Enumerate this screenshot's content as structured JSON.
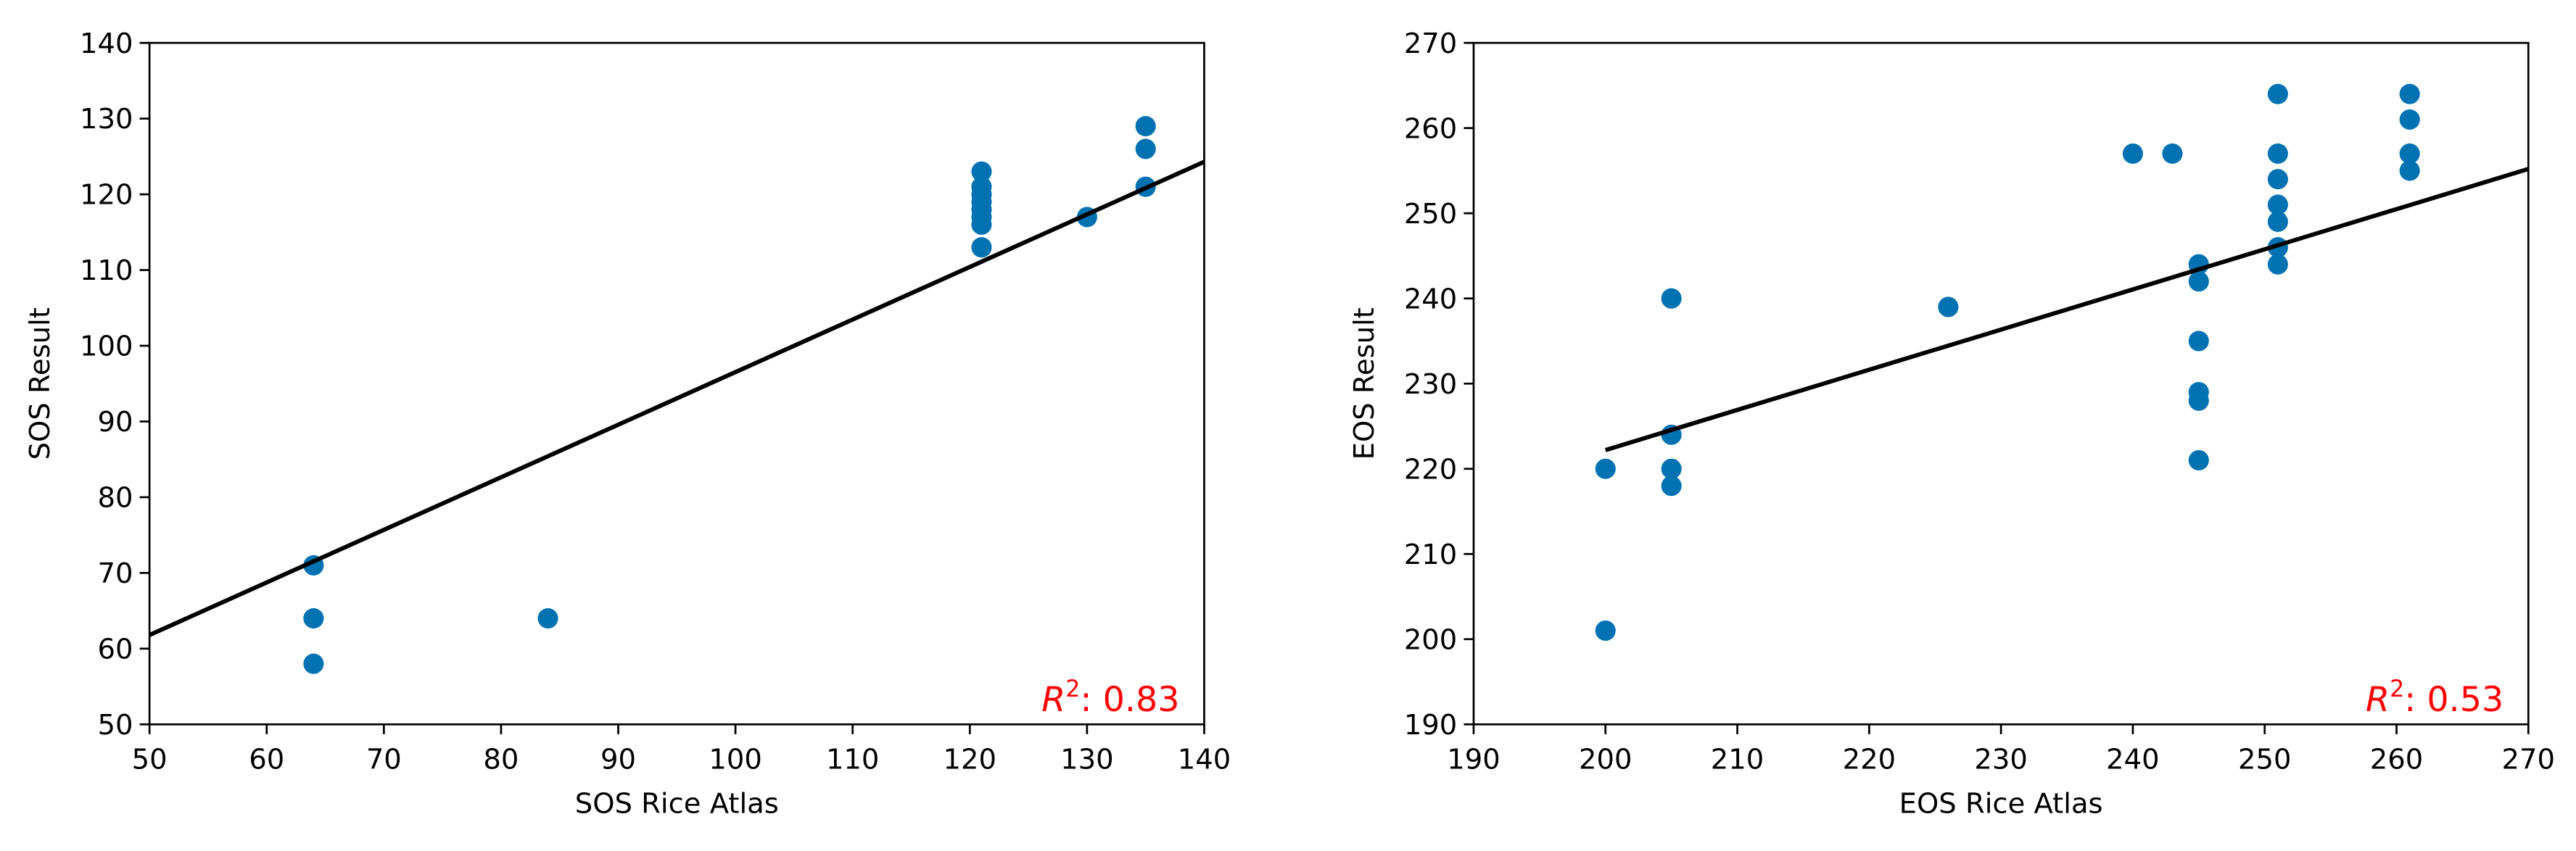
{
  "chart_data": [
    {
      "type": "scatter",
      "xlabel": "SOS Rice Atlas",
      "ylabel": "SOS Result",
      "color": "#0072b2",
      "x": [
        64,
        64,
        64,
        84,
        121,
        121,
        121,
        121,
        121,
        121,
        121,
        121,
        130,
        135,
        135,
        135
      ],
      "y": [
        71,
        64,
        58,
        64,
        123,
        121,
        120,
        119,
        118,
        117,
        116,
        113,
        117,
        129,
        126,
        121
      ],
      "fit": {
        "x": [
          50,
          140
        ],
        "y": [
          61.8,
          124.3
        ],
        "color": "#000000"
      },
      "xlim": [
        50,
        140
      ],
      "ylim": [
        50,
        140
      ],
      "xticks": [
        50,
        60,
        70,
        80,
        90,
        100,
        110,
        120,
        130,
        140
      ],
      "yticks": [
        50,
        60,
        70,
        80,
        90,
        100,
        110,
        120,
        130,
        140
      ],
      "annotation": [
        "R",
        "2",
        ": 0.83"
      ],
      "annotation_color": "#ff0000"
    },
    {
      "type": "scatter",
      "xlabel": "EOS Rice Atlas",
      "ylabel": "EOS Result",
      "color": "#0072b2",
      "x": [
        200,
        200,
        205,
        205,
        205,
        205,
        226,
        240,
        243,
        245,
        245,
        245,
        245,
        245,
        245,
        251,
        251,
        251,
        251,
        251,
        251,
        251,
        261,
        261,
        261,
        261
      ],
      "y": [
        220,
        201,
        240,
        224,
        220,
        218,
        239,
        257,
        257,
        244,
        242,
        235,
        229,
        228,
        221,
        264,
        257,
        254,
        251,
        249,
        246,
        244,
        264,
        261,
        257,
        255
      ],
      "fit": {
        "x": [
          200,
          270
        ],
        "y": [
          222.2,
          255.2
        ],
        "color": "#000000"
      },
      "xlim": [
        190,
        270
      ],
      "ylim": [
        190,
        270
      ],
      "xticks": [
        190,
        200,
        210,
        220,
        230,
        240,
        250,
        260,
        270
      ],
      "yticks": [
        190,
        200,
        210,
        220,
        230,
        240,
        250,
        260,
        270
      ],
      "annotation": [
        "R",
        "2",
        ": 0.53"
      ],
      "annotation_color": "#ff0000"
    }
  ]
}
